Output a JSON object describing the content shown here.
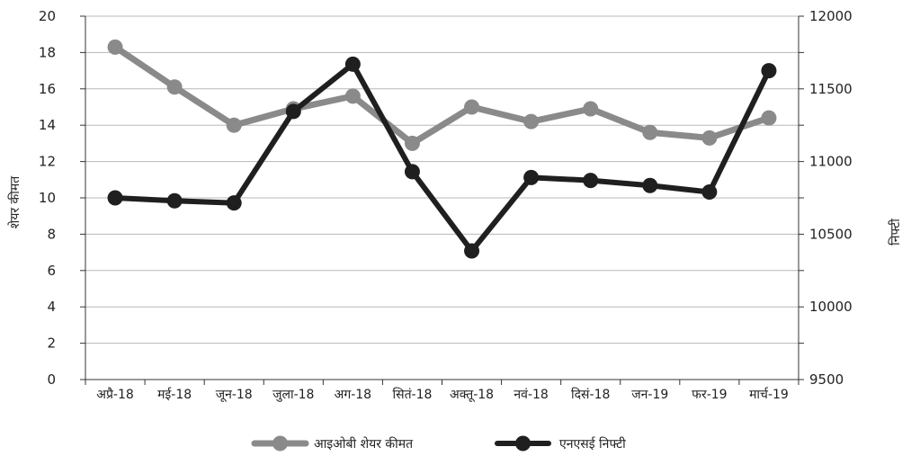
{
  "chart_data": {
    "type": "line",
    "categories": [
      "अप्रै-18",
      "मई-18",
      "जून-18",
      "जुला-18",
      "अग-18",
      "सितं-18",
      "अक्तू-18",
      "नवं-18",
      "दिसं-18",
      "जन-19",
      "फर-19",
      "मार्च-19"
    ],
    "series": [
      {
        "name": "आइओबी शेयर कीमत",
        "axis": "left",
        "color": "#8a8a8a",
        "values": [
          18.3,
          16.1,
          14.0,
          14.9,
          15.6,
          13.0,
          15.0,
          14.2,
          14.9,
          13.6,
          13.3,
          14.4
        ]
      },
      {
        "name": "एनएसई निफ्टी",
        "axis": "right",
        "color": "#1f1f1f",
        "values": [
          10750,
          10730,
          10715,
          11345,
          11670,
          10930,
          10385,
          10890,
          10870,
          10835,
          10790,
          11625
        ]
      }
    ],
    "y_left": {
      "label": "शेयर कीमत",
      "lim": [
        0,
        20
      ],
      "ticks": [
        "0",
        "2",
        "4",
        "6",
        "8",
        "10",
        "12",
        "14",
        "16",
        "18",
        "20"
      ]
    },
    "y_right": {
      "label": "निफ्टी",
      "lim": [
        9500,
        12000
      ],
      "ticks": [
        "9500",
        "10000",
        "10500",
        "11000",
        "11500",
        "12000"
      ]
    },
    "grid": true,
    "legend": "bottom"
  }
}
